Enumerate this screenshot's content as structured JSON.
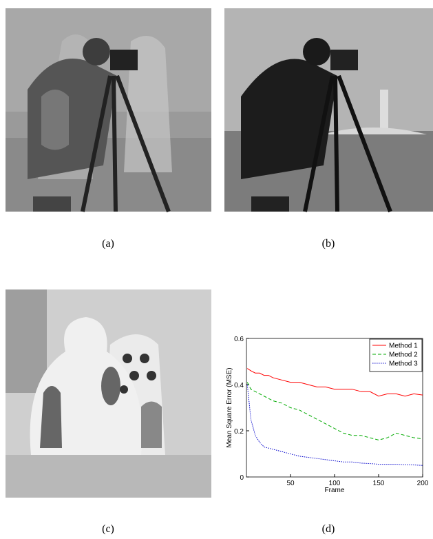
{
  "panels": [
    {
      "label": "(a)"
    },
    {
      "label": "(b)"
    },
    {
      "label": "(c)"
    },
    {
      "label": "(d)"
    }
  ],
  "chart_data": {
    "type": "line",
    "xlabel": "Frame",
    "ylabel": "Mean Square Error (MSE)",
    "x": [
      1,
      5,
      10,
      15,
      20,
      25,
      30,
      40,
      50,
      60,
      70,
      80,
      90,
      100,
      110,
      120,
      130,
      140,
      150,
      160,
      170,
      180,
      190,
      200
    ],
    "series": [
      {
        "name": "Method 1",
        "color": "#ff0000",
        "dash": "solid",
        "values": [
          0.47,
          0.46,
          0.45,
          0.45,
          0.44,
          0.44,
          0.43,
          0.42,
          0.41,
          0.41,
          0.4,
          0.39,
          0.39,
          0.38,
          0.38,
          0.38,
          0.37,
          0.37,
          0.35,
          0.36,
          0.36,
          0.35,
          0.36,
          0.355
        ]
      },
      {
        "name": "Method 2",
        "color": "#00aa00",
        "dash": "dashed",
        "values": [
          0.41,
          0.38,
          0.37,
          0.36,
          0.35,
          0.34,
          0.33,
          0.32,
          0.3,
          0.29,
          0.27,
          0.25,
          0.23,
          0.21,
          0.19,
          0.18,
          0.18,
          0.17,
          0.16,
          0.17,
          0.19,
          0.18,
          0.17,
          0.165
        ]
      },
      {
        "name": "Method 3",
        "color": "#0000cc",
        "dash": "dotted",
        "values": [
          0.4,
          0.25,
          0.18,
          0.15,
          0.13,
          0.125,
          0.12,
          0.11,
          0.1,
          0.09,
          0.085,
          0.08,
          0.075,
          0.07,
          0.065,
          0.065,
          0.06,
          0.058,
          0.055,
          0.055,
          0.055,
          0.053,
          0.052,
          0.05
        ]
      }
    ],
    "xlim": [
      0,
      200
    ],
    "xticks": [
      50,
      100,
      150,
      200
    ],
    "ylim": [
      0,
      0.6
    ],
    "yticks": [
      0,
      0.2,
      0.4,
      0.6
    ],
    "legend": "upper right"
  }
}
